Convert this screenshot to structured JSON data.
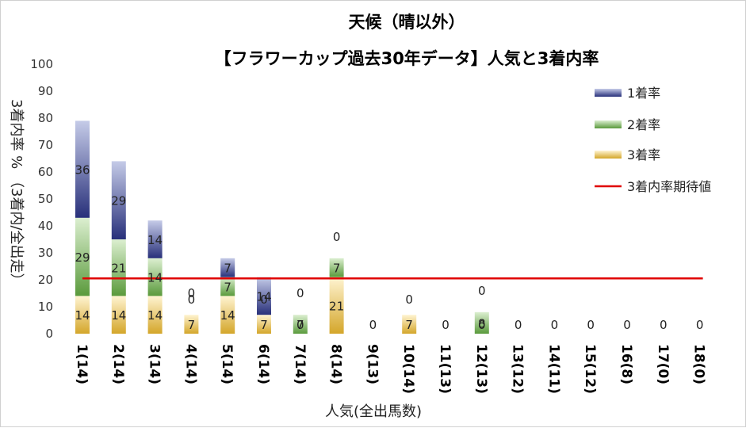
{
  "chart_data": {
    "type": "bar",
    "stacked": true,
    "title": "天候（晴以外）",
    "subtitle": "【フラワーカップ過去30年データ】人気と3着内率",
    "xlabel": "人気(全出馬数)",
    "ylabel": "3着内率 %  （3着内/全出走）",
    "ylim": [
      0,
      100
    ],
    "yticks": [
      "0",
      "10",
      "20",
      "30",
      "40",
      "50",
      "60",
      "70",
      "80",
      "90",
      "100"
    ],
    "categories": [
      "1(14)",
      "2(14)",
      "3(14)",
      "4(14)",
      "5(14)",
      "6(14)",
      "7(14)",
      "8(14)",
      "9(13)",
      "10(14)",
      "11(13)",
      "12(13)",
      "13(12)",
      "14(11)",
      "15(12)",
      "16(8)",
      "17(0)",
      "18(0)"
    ],
    "series": [
      {
        "name": "3着率",
        "color": "#d4a62a",
        "values": [
          14,
          14,
          14,
          7,
          14,
          7,
          0,
          21,
          0,
          7,
          0,
          0,
          0,
          0,
          0,
          0,
          0,
          0
        ],
        "labels": [
          "14",
          "14",
          "14",
          "7",
          "14",
          "7",
          "0",
          "21",
          "0",
          "7",
          "0",
          "0",
          "0",
          "0",
          "0",
          "0",
          "0",
          "0"
        ]
      },
      {
        "name": "2着率",
        "color": "#5a9a3c",
        "values": [
          29,
          21,
          14,
          0,
          7,
          0,
          7,
          7,
          0,
          0,
          0,
          8,
          0,
          0,
          0,
          0,
          0,
          0
        ],
        "labels": [
          "29",
          "21",
          "14",
          "0",
          "7",
          "0",
          "7",
          "7",
          "",
          "0",
          "",
          "8",
          "",
          "",
          "",
          "",
          "",
          ""
        ]
      },
      {
        "name": "1着率",
        "color": "#28307a",
        "values": [
          36,
          29,
          14,
          0,
          7,
          14,
          0,
          0,
          0,
          0,
          0,
          0,
          0,
          0,
          0,
          0,
          0,
          0
        ],
        "labels": [
          "36",
          "29",
          "14",
          "0",
          "7",
          "14",
          "0",
          "0",
          "",
          "",
          "",
          "0",
          "",
          "",
          "",
          "",
          "",
          ""
        ]
      }
    ],
    "reference_line": {
      "name": "3着内率期待値",
      "value": 20.5,
      "color": "#e00000"
    },
    "legend": [
      "1着率",
      "2着率",
      "3着率",
      "3着内率期待値"
    ],
    "legend_position": "right",
    "grid": false
  }
}
